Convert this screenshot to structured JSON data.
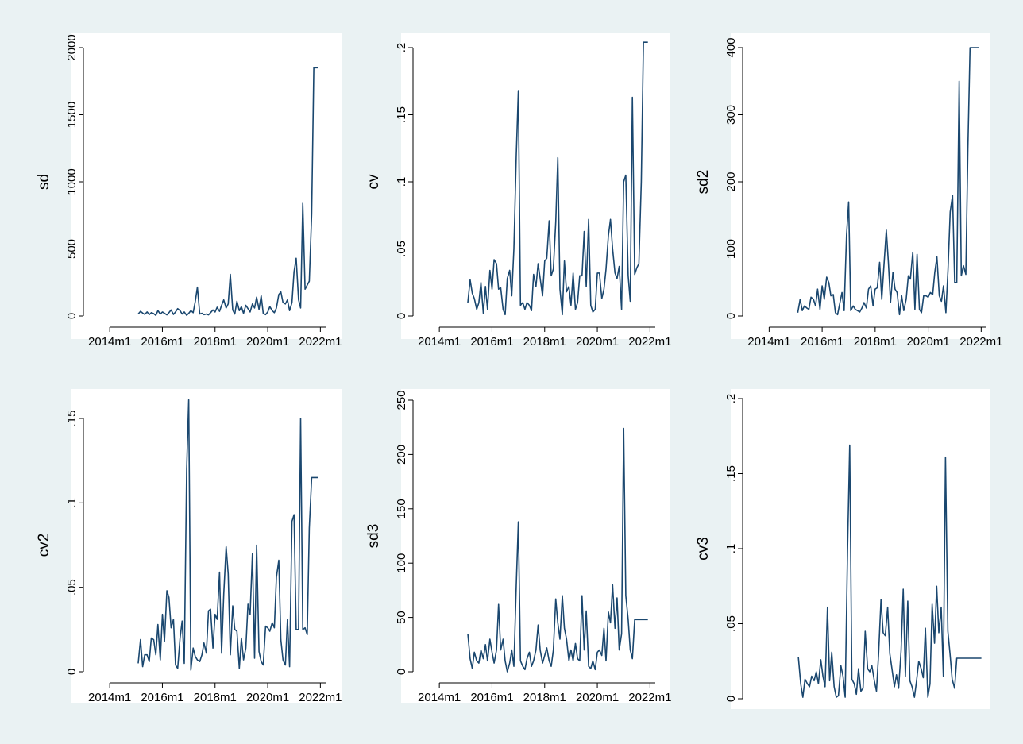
{
  "chart_data": [
    {
      "type": "line",
      "ylabel": "sd",
      "xlabel": "",
      "ylim": [
        0,
        2000
      ],
      "yticks": [
        0,
        500,
        1000,
        1500,
        2000
      ],
      "ytick_labels": [
        "0",
        "500",
        "1000",
        "1500",
        "2000"
      ],
      "xticks": [
        2014.0,
        2016.0,
        2018.0,
        2020.0,
        2022.0
      ],
      "xtick_labels": [
        "2014m1",
        "2016m1",
        "2018m1",
        "2020m1",
        "2022m1"
      ],
      "color": "#1a476f",
      "grid": false,
      "x": [
        2015.08,
        2015.17,
        2015.25,
        2015.33,
        2015.42,
        2015.5,
        2015.58,
        2015.67,
        2015.75,
        2015.83,
        2015.92,
        2016.0,
        2016.08,
        2016.17,
        2016.25,
        2016.33,
        2016.42,
        2016.5,
        2016.58,
        2016.67,
        2016.75,
        2016.83,
        2016.92,
        2017.0,
        2017.08,
        2017.17,
        2017.25,
        2017.33,
        2017.42,
        2017.5,
        2017.58,
        2017.67,
        2017.75,
        2017.83,
        2017.92,
        2018.0,
        2018.08,
        2018.17,
        2018.25,
        2018.33,
        2018.42,
        2018.5,
        2018.58,
        2018.67,
        2018.75,
        2018.83,
        2018.92,
        2019.0,
        2019.08,
        2019.17,
        2019.25,
        2019.33,
        2019.42,
        2019.5,
        2019.58,
        2019.67,
        2019.75,
        2019.83,
        2019.92,
        2020.0,
        2020.08,
        2020.17,
        2020.25,
        2020.33,
        2020.42,
        2020.5,
        2020.58,
        2020.67,
        2020.75,
        2020.83,
        2020.92,
        2021.0,
        2021.08,
        2021.17,
        2021.25,
        2021.33,
        2021.42,
        2021.5,
        2021.58,
        2021.67,
        2021.75,
        2021.83,
        2021.92
      ],
      "values": [
        15,
        35,
        22,
        12,
        30,
        10,
        25,
        18,
        5,
        40,
        15,
        30,
        20,
        8,
        25,
        45,
        12,
        30,
        55,
        40,
        15,
        30,
        5,
        20,
        40,
        25,
        110,
        215,
        15,
        20,
        10,
        15,
        8,
        25,
        45,
        30,
        65,
        35,
        80,
        120,
        60,
        90,
        310,
        45,
        15,
        110,
        40,
        70,
        20,
        80,
        55,
        30,
        90,
        60,
        140,
        50,
        150,
        20,
        10,
        30,
        70,
        40,
        25,
        60,
        160,
        180,
        100,
        90,
        120,
        40,
        100,
        330,
        430,
        120,
        60,
        840,
        200,
        230,
        260,
        760,
        1850,
        1850,
        1850
      ]
    },
    {
      "type": "line",
      "ylabel": "cv",
      "xlabel": "",
      "ylim": [
        0,
        0.2
      ],
      "yticks": [
        0,
        0.05,
        0.1,
        0.15,
        0.2
      ],
      "ytick_labels": [
        "0",
        ".05",
        ".1",
        ".15",
        ".2"
      ],
      "xticks": [
        2014.0,
        2016.0,
        2018.0,
        2020.0,
        2022.0
      ],
      "xtick_labels": [
        "2014m1",
        "2016m1",
        "2018m1",
        "2020m1",
        "2022m1"
      ],
      "color": "#1a476f",
      "grid": false,
      "x": [
        2015.08,
        2015.17,
        2015.25,
        2015.33,
        2015.42,
        2015.5,
        2015.58,
        2015.67,
        2015.75,
        2015.83,
        2015.92,
        2016.0,
        2016.08,
        2016.17,
        2016.25,
        2016.33,
        2016.42,
        2016.5,
        2016.58,
        2016.67,
        2016.75,
        2016.83,
        2016.92,
        2017.0,
        2017.08,
        2017.17,
        2017.25,
        2017.33,
        2017.42,
        2017.5,
        2017.58,
        2017.67,
        2017.75,
        2017.83,
        2017.92,
        2018.0,
        2018.08,
        2018.17,
        2018.25,
        2018.33,
        2018.42,
        2018.5,
        2018.58,
        2018.67,
        2018.75,
        2018.83,
        2018.92,
        2019.0,
        2019.08,
        2019.17,
        2019.25,
        2019.33,
        2019.42,
        2019.5,
        2019.58,
        2019.67,
        2019.75,
        2019.83,
        2019.92,
        2020.0,
        2020.08,
        2020.17,
        2020.25,
        2020.33,
        2020.42,
        2020.5,
        2020.58,
        2020.67,
        2020.75,
        2020.83,
        2020.92,
        2021.0,
        2021.08,
        2021.17,
        2021.25,
        2021.33,
        2021.42,
        2021.5,
        2021.58,
        2021.67,
        2021.75,
        2021.83,
        2021.92
      ],
      "values": [
        0.01,
        0.027,
        0.017,
        0.013,
        0.005,
        0.01,
        0.025,
        0.002,
        0.022,
        0.005,
        0.034,
        0.02,
        0.042,
        0.039,
        0.02,
        0.021,
        0.005,
        0.001,
        0.028,
        0.034,
        0.015,
        0.05,
        0.12,
        0.168,
        0.008,
        0.01,
        0.005,
        0.01,
        0.008,
        0.004,
        0.031,
        0.022,
        0.039,
        0.028,
        0.015,
        0.041,
        0.043,
        0.071,
        0.03,
        0.035,
        0.07,
        0.118,
        0.02,
        0.001,
        0.041,
        0.018,
        0.022,
        0.008,
        0.032,
        0.005,
        0.01,
        0.03,
        0.03,
        0.063,
        0.022,
        0.072,
        0.008,
        0.003,
        0.005,
        0.032,
        0.032,
        0.013,
        0.02,
        0.035,
        0.06,
        0.072,
        0.05,
        0.032,
        0.028,
        0.037,
        0.005,
        0.1,
        0.105,
        0.03,
        0.011,
        0.163,
        0.031,
        0.036,
        0.039,
        0.1,
        0.204,
        0.204,
        0.204
      ]
    },
    {
      "type": "line",
      "ylabel": "sd2",
      "xlabel": "",
      "ylim": [
        0,
        400
      ],
      "yticks": [
        0,
        100,
        200,
        300,
        400
      ],
      "ytick_labels": [
        "0",
        "100",
        "200",
        "300",
        "400"
      ],
      "xticks": [
        2014.0,
        2016.0,
        2018.0,
        2020.0,
        2022.0
      ],
      "xtick_labels": [
        "2014m1",
        "2016m1",
        "2018m1",
        "2020m1",
        "2022m1"
      ],
      "color": "#1a476f",
      "grid": false,
      "x": [
        2015.08,
        2015.17,
        2015.25,
        2015.33,
        2015.42,
        2015.5,
        2015.58,
        2015.67,
        2015.75,
        2015.83,
        2015.92,
        2016.0,
        2016.08,
        2016.17,
        2016.25,
        2016.33,
        2016.42,
        2016.5,
        2016.58,
        2016.67,
        2016.75,
        2016.83,
        2016.92,
        2017.0,
        2017.08,
        2017.17,
        2017.25,
        2017.33,
        2017.42,
        2017.5,
        2017.58,
        2017.67,
        2017.75,
        2017.83,
        2017.92,
        2018.0,
        2018.08,
        2018.17,
        2018.25,
        2018.33,
        2018.42,
        2018.5,
        2018.58,
        2018.67,
        2018.75,
        2018.83,
        2018.92,
        2019.0,
        2019.08,
        2019.17,
        2019.25,
        2019.33,
        2019.42,
        2019.5,
        2019.58,
        2019.67,
        2019.75,
        2019.83,
        2019.92,
        2020.0,
        2020.08,
        2020.17,
        2020.25,
        2020.33,
        2020.42,
        2020.5,
        2020.58,
        2020.67,
        2020.75,
        2020.83,
        2020.92,
        2021.0,
        2021.08,
        2021.17,
        2021.25,
        2021.33,
        2021.42,
        2021.5,
        2021.58,
        2021.67,
        2021.75,
        2021.83,
        2021.92
      ],
      "values": [
        5,
        25,
        8,
        15,
        12,
        10,
        28,
        25,
        15,
        40,
        10,
        45,
        25,
        58,
        50,
        30,
        32,
        5,
        2,
        20,
        35,
        8,
        120,
        170,
        8,
        15,
        10,
        8,
        6,
        12,
        20,
        12,
        40,
        45,
        15,
        40,
        42,
        80,
        25,
        75,
        128,
        80,
        20,
        65,
        40,
        35,
        2,
        30,
        8,
        25,
        60,
        55,
        95,
        10,
        92,
        10,
        5,
        30,
        30,
        28,
        35,
        32,
        65,
        88,
        30,
        22,
        45,
        5,
        70,
        155,
        180,
        50,
        50,
        350,
        60,
        75,
        62,
        250,
        400,
        400,
        400,
        400,
        400
      ]
    },
    {
      "type": "line",
      "ylabel": "cv2",
      "xlabel": "",
      "ylim": [
        0,
        0.15
      ],
      "yticks": [
        0,
        0.05,
        0.1,
        0.15
      ],
      "ytick_labels": [
        "0",
        ".05",
        ".1",
        ".15"
      ],
      "xticks": [
        2014.0,
        2016.0,
        2018.0,
        2020.0,
        2022.0
      ],
      "xtick_labels": [
        "2014m1",
        "2016m1",
        "2018m1",
        "2020m1",
        "2022m1"
      ],
      "color": "#1a476f",
      "grid": false,
      "x": [
        2015.08,
        2015.17,
        2015.25,
        2015.33,
        2015.42,
        2015.5,
        2015.58,
        2015.67,
        2015.75,
        2015.83,
        2015.92,
        2016.0,
        2016.08,
        2016.17,
        2016.25,
        2016.33,
        2016.42,
        2016.5,
        2016.58,
        2016.67,
        2016.75,
        2016.83,
        2016.92,
        2017.0,
        2017.08,
        2017.17,
        2017.25,
        2017.33,
        2017.42,
        2017.5,
        2017.58,
        2017.67,
        2017.75,
        2017.83,
        2017.92,
        2018.0,
        2018.08,
        2018.17,
        2018.25,
        2018.33,
        2018.42,
        2018.5,
        2018.58,
        2018.67,
        2018.75,
        2018.83,
        2018.92,
        2019.0,
        2019.08,
        2019.17,
        2019.25,
        2019.33,
        2019.42,
        2019.5,
        2019.58,
        2019.67,
        2019.75,
        2019.83,
        2019.92,
        2020.0,
        2020.08,
        2020.17,
        2020.25,
        2020.33,
        2020.42,
        2020.5,
        2020.58,
        2020.67,
        2020.75,
        2020.83,
        2020.92,
        2021.0,
        2021.08,
        2021.17,
        2021.25,
        2021.33,
        2021.42,
        2021.5,
        2021.58,
        2021.67,
        2021.75,
        2021.83,
        2021.92
      ],
      "values": [
        0.005,
        0.019,
        0.003,
        0.01,
        0.01,
        0.006,
        0.02,
        0.019,
        0.01,
        0.028,
        0.007,
        0.034,
        0.018,
        0.048,
        0.044,
        0.026,
        0.031,
        0.004,
        0.002,
        0.02,
        0.03,
        0.005,
        0.12,
        0.161,
        0.001,
        0.014,
        0.009,
        0.007,
        0.006,
        0.01,
        0.017,
        0.011,
        0.036,
        0.037,
        0.014,
        0.034,
        0.031,
        0.059,
        0.011,
        0.046,
        0.074,
        0.058,
        0.01,
        0.039,
        0.025,
        0.024,
        0.002,
        0.02,
        0.007,
        0.014,
        0.04,
        0.034,
        0.07,
        0.008,
        0.075,
        0.012,
        0.006,
        0.004,
        0.027,
        0.026,
        0.024,
        0.029,
        0.026,
        0.056,
        0.066,
        0.019,
        0.007,
        0.004,
        0.031,
        0.003,
        0.089,
        0.093,
        0.025,
        0.025,
        0.15,
        0.025,
        0.026,
        0.022,
        0.085,
        0.115,
        0.115,
        0.115,
        0.115
      ]
    },
    {
      "type": "line",
      "ylabel": "sd3",
      "xlabel": "",
      "ylim": [
        0,
        250
      ],
      "yticks": [
        0,
        50,
        100,
        150,
        200,
        250
      ],
      "ytick_labels": [
        "0",
        "50",
        "100",
        "150",
        "200",
        "250"
      ],
      "xticks": [
        2014.0,
        2016.0,
        2018.0,
        2020.0,
        2022.0
      ],
      "xtick_labels": [
        "2014m1",
        "2016m1",
        "2018m1",
        "2020m1",
        "2022m1"
      ],
      "color": "#1a476f",
      "grid": false,
      "x": [
        2015.08,
        2015.17,
        2015.25,
        2015.33,
        2015.42,
        2015.5,
        2015.58,
        2015.67,
        2015.75,
        2015.83,
        2015.92,
        2016.0,
        2016.08,
        2016.17,
        2016.25,
        2016.33,
        2016.42,
        2016.5,
        2016.58,
        2016.67,
        2016.75,
        2016.83,
        2016.92,
        2017.0,
        2017.08,
        2017.17,
        2017.25,
        2017.33,
        2017.42,
        2017.5,
        2017.58,
        2017.67,
        2017.75,
        2017.83,
        2017.92,
        2018.0,
        2018.08,
        2018.17,
        2018.25,
        2018.33,
        2018.42,
        2018.5,
        2018.58,
        2018.67,
        2018.75,
        2018.83,
        2018.92,
        2019.0,
        2019.08,
        2019.17,
        2019.25,
        2019.33,
        2019.42,
        2019.5,
        2019.58,
        2019.67,
        2019.75,
        2019.83,
        2019.92,
        2020.0,
        2020.08,
        2020.17,
        2020.25,
        2020.33,
        2020.42,
        2020.5,
        2020.58,
        2020.67,
        2020.75,
        2020.83,
        2020.92,
        2021.0,
        2021.08,
        2021.17,
        2021.25,
        2021.33,
        2021.42,
        2021.5,
        2021.58,
        2021.67,
        2021.75,
        2021.83,
        2021.92
      ],
      "values": [
        35,
        12,
        3,
        18,
        10,
        8,
        20,
        12,
        25,
        10,
        30,
        18,
        8,
        20,
        62,
        20,
        30,
        10,
        0,
        8,
        20,
        5,
        80,
        138,
        10,
        5,
        2,
        12,
        18,
        5,
        10,
        20,
        43,
        20,
        8,
        15,
        22,
        10,
        5,
        20,
        67,
        45,
        30,
        70,
        40,
        30,
        10,
        20,
        10,
        26,
        12,
        10,
        70,
        20,
        56,
        5,
        3,
        10,
        2,
        18,
        20,
        15,
        40,
        10,
        55,
        45,
        80,
        40,
        68,
        20,
        35,
        224,
        70,
        48,
        20,
        12,
        48,
        48,
        48,
        48,
        48,
        48,
        48
      ]
    },
    {
      "type": "line",
      "ylabel": "cv3",
      "xlabel": "",
      "ylim": [
        0,
        0.2
      ],
      "yticks": [
        0,
        0.05,
        0.1,
        0.15,
        0.2
      ],
      "ytick_labels": [
        "0",
        ".05",
        ".1",
        ".15",
        ".2"
      ],
      "xticks": [],
      "xtick_labels": [],
      "color": "#1a476f",
      "grid": false,
      "x": [
        2015.08,
        2015.17,
        2015.25,
        2015.33,
        2015.42,
        2015.5,
        2015.58,
        2015.67,
        2015.75,
        2015.83,
        2015.92,
        2016.0,
        2016.08,
        2016.17,
        2016.25,
        2016.33,
        2016.42,
        2016.5,
        2016.58,
        2016.67,
        2016.75,
        2016.83,
        2016.92,
        2017.0,
        2017.08,
        2017.17,
        2017.25,
        2017.33,
        2017.42,
        2017.5,
        2017.58,
        2017.67,
        2017.75,
        2017.83,
        2017.92,
        2018.0,
        2018.08,
        2018.17,
        2018.25,
        2018.33,
        2018.42,
        2018.5,
        2018.58,
        2018.67,
        2018.75,
        2018.83,
        2018.92,
        2019.0,
        2019.08,
        2019.17,
        2019.25,
        2019.33,
        2019.42,
        2019.5,
        2019.58,
        2019.67,
        2019.75,
        2019.83,
        2019.92,
        2020.0,
        2020.08,
        2020.17,
        2020.25,
        2020.33,
        2020.42,
        2020.5,
        2020.58,
        2020.67,
        2020.75,
        2020.83,
        2020.92,
        2021.0,
        2021.08,
        2021.17,
        2021.25,
        2021.33,
        2021.42,
        2021.5,
        2021.58,
        2021.67,
        2021.75,
        2021.83,
        2021.92
      ],
      "values": [
        0.028,
        0.01,
        0.001,
        0.013,
        0.01,
        0.008,
        0.015,
        0.012,
        0.018,
        0.01,
        0.026,
        0.015,
        0.008,
        0.061,
        0.012,
        0.031,
        0.008,
        0.001,
        0.002,
        0.022,
        0.015,
        0.001,
        0.1,
        0.169,
        0.013,
        0.01,
        0.003,
        0.02,
        0.005,
        0.007,
        0.045,
        0.02,
        0.018,
        0.022,
        0.012,
        0.005,
        0.03,
        0.066,
        0.044,
        0.042,
        0.061,
        0.03,
        0.02,
        0.008,
        0.016,
        0.007,
        0.032,
        0.073,
        0.015,
        0.065,
        0.012,
        0.008,
        0.001,
        0.012,
        0.025,
        0.02,
        0.014,
        0.047,
        0.001,
        0.01,
        0.063,
        0.037,
        0.075,
        0.044,
        0.061,
        0.015,
        0.161,
        0.045,
        0.03,
        0.013,
        0.007,
        0.027,
        0.027,
        0.027,
        0.027,
        0.027,
        0.027,
        0.027,
        0.027,
        0.027,
        0.027,
        0.027,
        0.027
      ]
    }
  ]
}
